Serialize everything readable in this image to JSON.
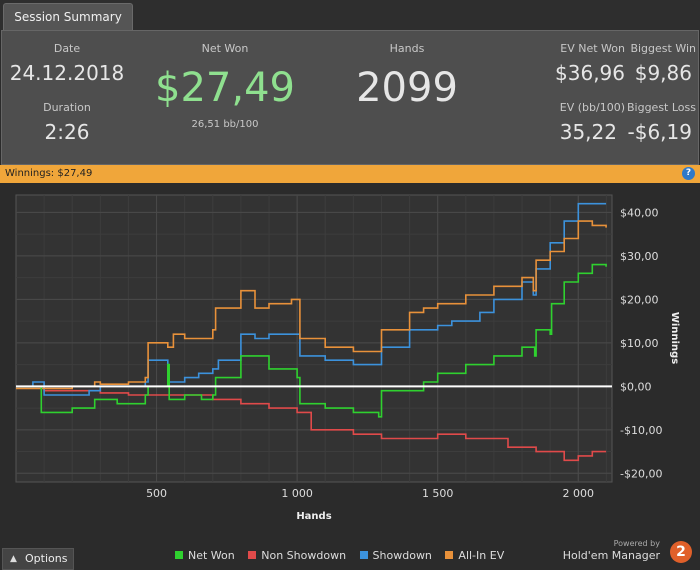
{
  "tab": {
    "label": "Session Summary"
  },
  "summary": {
    "date_label": "Date",
    "date_value": "24.12.2018",
    "duration_label": "Duration",
    "duration_value": "2:26",
    "netwon_label": "Net Won",
    "netwon_value": "$27,49",
    "netwon_sub": "26,51 bb/100",
    "hands_label": "Hands",
    "hands_value": "2099",
    "evnet_label": "EV Net Won",
    "evnet_value": "$36,96",
    "bigwin_label": "Biggest Win",
    "bigwin_value": "$9,86",
    "evbb_label": "EV (bb/100)",
    "evbb_value": "35,22",
    "bigloss_label": "Biggest Loss",
    "bigloss_value": "-$6,19"
  },
  "banner": {
    "text": "Winnings: $27,49",
    "help_glyph": "?"
  },
  "colors": {
    "net_won": "#2fd12f",
    "non_showdown": "#e04a4a",
    "showdown": "#3c92dc",
    "all_in_ev": "#e8913a",
    "netwon_value": "#8fe08f"
  },
  "bottom": {
    "options_label": "Options",
    "powered_by": "Powered by",
    "brand": "Hold'em Manager",
    "badge": "2"
  },
  "chart_data": {
    "type": "line",
    "xlabel": "Hands",
    "ylabel": "Winnings",
    "xlim": [
      0,
      2120
    ],
    "ylim": [
      -22,
      44
    ],
    "x_ticks": [
      500,
      1000,
      1500,
      2000
    ],
    "x_tick_labels": [
      "500",
      "1 000",
      "1 500",
      "2 000"
    ],
    "y_ticks": [
      40,
      30,
      20,
      10,
      0,
      -10,
      -20
    ],
    "y_tick_labels": [
      "$40,00",
      "$30,00",
      "$20,00",
      "$10,00",
      "$0,00",
      "-$10,00",
      "-$20,00"
    ],
    "grid": true,
    "legend_position": "bottom",
    "series": [
      {
        "name": "Net Won",
        "color_key": "net_won",
        "x": [
          0,
          90,
          200,
          280,
          360,
          460,
          470,
          540,
          545,
          600,
          660,
          700,
          710,
          800,
          900,
          1000,
          1010,
          1100,
          1200,
          1290,
          1300,
          1400,
          1450,
          1500,
          1600,
          1700,
          1800,
          1845,
          1850,
          1900,
          1905,
          1950,
          2000,
          2050,
          2099
        ],
        "y": [
          0,
          -6,
          -5,
          -3,
          -4,
          -2,
          0,
          5,
          -3,
          -2,
          -3,
          -2,
          2,
          7,
          4,
          2,
          -4,
          -5,
          -6,
          -7,
          -1,
          -1,
          1,
          3,
          5,
          7,
          9,
          7,
          13,
          12,
          19,
          24,
          26,
          28,
          27.5
        ]
      },
      {
        "name": "Non Showdown",
        "color_key": "non_showdown",
        "x": [
          0,
          100,
          200,
          300,
          400,
          500,
          600,
          700,
          800,
          900,
          1000,
          1050,
          1100,
          1200,
          1300,
          1400,
          1500,
          1600,
          1700,
          1750,
          1800,
          1850,
          1900,
          1950,
          2000,
          2050,
          2099
        ],
        "y": [
          0,
          -1,
          -1,
          -1.5,
          -2,
          -2,
          -2,
          -3,
          -4,
          -5,
          -6,
          -10,
          -10,
          -11,
          -12,
          -12,
          -11,
          -12,
          -12,
          -14,
          -14,
          -15,
          -15,
          -17,
          -16,
          -15,
          -15
        ]
      },
      {
        "name": "Showdown",
        "color_key": "showdown",
        "x": [
          0,
          60,
          100,
          200,
          260,
          300,
          400,
          460,
          470,
          540,
          600,
          650,
          700,
          720,
          800,
          850,
          900,
          1000,
          1010,
          1100,
          1200,
          1290,
          1300,
          1400,
          1450,
          1500,
          1550,
          1650,
          1700,
          1800,
          1840,
          1850,
          1900,
          1950,
          2000,
          2050,
          2099
        ],
        "y": [
          0,
          1,
          -2,
          -2,
          -1,
          0,
          0,
          1,
          6,
          1,
          2,
          3,
          4,
          6,
          12,
          11,
          12,
          12,
          7,
          6,
          5,
          5,
          9,
          13,
          13,
          14,
          15,
          17,
          20,
          24,
          21,
          27,
          33,
          38,
          42,
          42,
          42
        ]
      },
      {
        "name": "All-In EV",
        "color_key": "all_in_ev",
        "x": [
          0,
          100,
          200,
          280,
          300,
          400,
          460,
          470,
          540,
          560,
          600,
          700,
          710,
          780,
          800,
          850,
          900,
          980,
          1000,
          1010,
          1100,
          1200,
          1290,
          1300,
          1400,
          1450,
          1500,
          1600,
          1700,
          1800,
          1840,
          1850,
          1900,
          1950,
          2000,
          2050,
          2099
        ],
        "y": [
          -0.5,
          -0.5,
          0,
          1,
          0.5,
          1,
          2,
          10,
          9,
          12,
          11,
          13,
          18,
          18,
          22,
          18,
          19,
          20,
          20,
          11,
          9,
          8,
          8,
          13,
          17,
          18,
          19,
          21,
          23,
          25,
          22,
          29,
          31,
          34,
          38,
          37,
          36.5
        ]
      }
    ]
  }
}
